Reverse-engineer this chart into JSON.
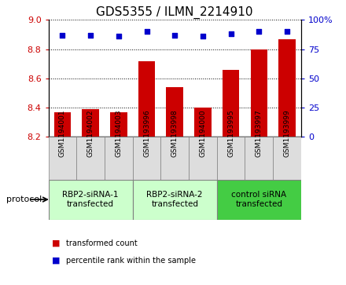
{
  "title": "GDS5355 / ILMN_2214910",
  "samples": [
    "GSM1194001",
    "GSM1194002",
    "GSM1194003",
    "GSM1193996",
    "GSM1193998",
    "GSM1194000",
    "GSM1193995",
    "GSM1193997",
    "GSM1193999"
  ],
  "bar_values": [
    8.37,
    8.39,
    8.37,
    8.72,
    8.54,
    8.4,
    8.66,
    8.8,
    8.87
  ],
  "percentile_values": [
    87,
    87,
    86,
    90,
    87,
    86,
    88,
    90,
    90
  ],
  "ylim_left": [
    8.2,
    9.0
  ],
  "ylim_right": [
    0,
    100
  ],
  "yticks_left": [
    8.2,
    8.4,
    8.6,
    8.8,
    9.0
  ],
  "yticks_right": [
    0,
    25,
    50,
    75,
    100
  ],
  "bar_color": "#cc0000",
  "dot_color": "#0000cc",
  "protocol_groups": [
    {
      "label": "RBP2-siRNA-1\ntransfected",
      "start": 0,
      "end": 3,
      "color": "#ccffcc"
    },
    {
      "label": "RBP2-siRNA-2\ntransfected",
      "start": 3,
      "end": 6,
      "color": "#ccffcc"
    },
    {
      "label": "control siRNA\ntransfected",
      "start": 6,
      "end": 9,
      "color": "#44cc44"
    }
  ],
  "legend_bar_label": "transformed count",
  "legend_dot_label": "percentile rank within the sample",
  "protocol_label": "protocol",
  "sample_bg_color": "#dddddd",
  "plot_bg": "#ffffff"
}
